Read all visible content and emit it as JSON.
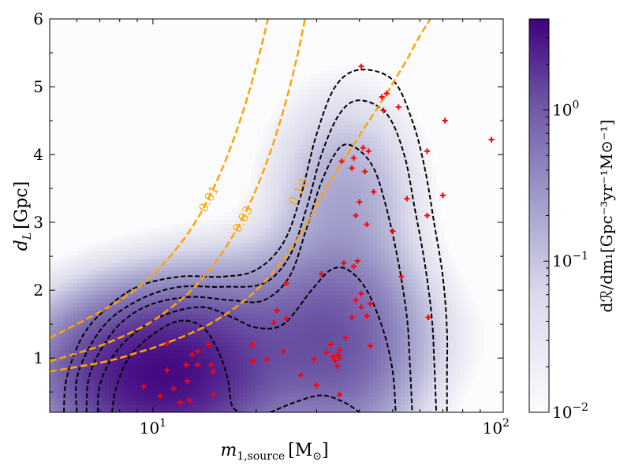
{
  "chart_data": {
    "type": "heatmap",
    "xscale": "log",
    "xlim": [
      5,
      105
    ],
    "ylim": [
      0.2,
      6.0
    ],
    "xlabel_main": "m",
    "xlabel_sub": "1,source",
    "xlabel_unit": "[M",
    "xlabel_unit_sub": "⊙",
    "xlabel_close": "]",
    "ylabel_main": "d",
    "ylabel_sub": "L",
    "ylabel_unit": "[Gpc]",
    "x_ticks": [
      {
        "value": 10,
        "base": "10",
        "exp": "1"
      },
      {
        "value": 100,
        "base": "10",
        "exp": "2"
      }
    ],
    "y_ticks": [
      {
        "value": 1,
        "label": "1"
      },
      {
        "value": 2,
        "label": "2"
      },
      {
        "value": 3,
        "label": "3"
      },
      {
        "value": 4,
        "label": "4"
      },
      {
        "value": 5,
        "label": "5"
      },
      {
        "value": 6,
        "label": "6"
      }
    ],
    "colorbar": {
      "label": "dℛ/dm₁[Gpc⁻³yr⁻¹M⊙⁻¹]",
      "scale": "log",
      "range": [
        0.01,
        4.0
      ],
      "ticks": [
        {
          "value": 0.01,
          "base": "10",
          "exp": "−2"
        },
        {
          "value": 0.1,
          "base": "10",
          "exp": "−1"
        },
        {
          "value": 1,
          "base": "10",
          "exp": "0"
        }
      ],
      "colors": [
        "#fcfbfd",
        "#dadaeb",
        "#9e9ac8",
        "#6a51a3",
        "#3f007d"
      ]
    },
    "density_blobs": [
      {
        "x": 10.5,
        "y": 0.75,
        "sx": 0.16,
        "sy": 0.55,
        "amp": 3.2
      },
      {
        "x": 20.0,
        "y": 1.3,
        "sx": 0.22,
        "sy": 0.6,
        "amp": 0.5
      },
      {
        "x": 34.0,
        "y": 1.2,
        "sx": 0.12,
        "sy": 0.8,
        "amp": 0.6
      },
      {
        "x": 36.0,
        "y": 3.3,
        "sx": 0.11,
        "sy": 0.8,
        "amp": 0.14
      }
    ],
    "contour_levels": [
      [
        [
          5.5,
          0.2
        ],
        [
          5.6,
          0.7
        ],
        [
          6.2,
          1.3
        ],
        [
          7.2,
          1.7
        ],
        [
          9,
          2.05
        ],
        [
          12,
          2.2
        ],
        [
          16,
          2.2
        ],
        [
          20,
          2.3
        ],
        [
          24,
          2.7
        ],
        [
          27,
          3.4
        ],
        [
          30,
          4.3
        ],
        [
          34,
          5.0
        ],
        [
          40,
          5.25
        ],
        [
          50,
          5.1
        ],
        [
          57,
          4.5
        ],
        [
          62,
          3.8
        ],
        [
          66,
          3.0
        ],
        [
          70,
          2.2
        ],
        [
          72,
          1.4
        ],
        [
          72,
          0.8
        ],
        [
          72,
          0.2
        ]
      ],
      [
        [
          6.0,
          0.2
        ],
        [
          6.0,
          0.7
        ],
        [
          6.6,
          1.2
        ],
        [
          7.6,
          1.6
        ],
        [
          9.5,
          1.9
        ],
        [
          12,
          2.05
        ],
        [
          16,
          2.05
        ],
        [
          21,
          2.1
        ],
        [
          25,
          2.5
        ],
        [
          28,
          3.2
        ],
        [
          31,
          4.0
        ],
        [
          35,
          4.6
        ],
        [
          40,
          4.8
        ],
        [
          48,
          4.6
        ],
        [
          54,
          4.0
        ],
        [
          58,
          3.2
        ],
        [
          62,
          2.4
        ],
        [
          65,
          1.6
        ],
        [
          66,
          1.0
        ],
        [
          67,
          0.2
        ]
      ],
      [
        [
          6.4,
          0.2
        ],
        [
          6.5,
          0.7
        ],
        [
          7.1,
          1.15
        ],
        [
          8.2,
          1.55
        ],
        [
          10,
          1.8
        ],
        [
          13,
          1.9
        ],
        [
          17,
          1.85
        ],
        [
          21,
          1.85
        ],
        [
          25,
          2.2
        ],
        [
          28,
          2.9
        ],
        [
          31,
          3.6
        ],
        [
          35,
          4.1
        ],
        [
          39,
          4.1
        ],
        [
          44,
          3.8
        ],
        [
          48,
          3.2
        ],
        [
          52,
          2.4
        ],
        [
          55,
          1.6
        ],
        [
          56,
          1.0
        ],
        [
          57,
          0.2
        ]
      ],
      [
        [
          6.9,
          0.2
        ],
        [
          7.0,
          0.6
        ],
        [
          7.7,
          1.05
        ],
        [
          9,
          1.4
        ],
        [
          11,
          1.65
        ],
        [
          14,
          1.75
        ],
        [
          17,
          1.6
        ],
        [
          20,
          1.45
        ],
        [
          24,
          1.5
        ],
        [
          29,
          2.0
        ],
        [
          33,
          2.3
        ],
        [
          37,
          2.3
        ],
        [
          42,
          2.0
        ],
        [
          47,
          1.4
        ],
        [
          50,
          0.8
        ],
        [
          51,
          0.2
        ]
      ],
      [
        [
          7.6,
          0.2
        ],
        [
          7.8,
          0.55
        ],
        [
          8.5,
          1.0
        ],
        [
          10,
          1.35
        ],
        [
          12,
          1.55
        ],
        [
          14,
          1.45
        ],
        [
          15.5,
          1.1
        ],
        [
          16.5,
          0.7
        ],
        [
          17,
          0.3
        ],
        [
          18,
          0.2
        ]
      ],
      [
        [
          22,
          0.2
        ],
        [
          26,
          0.35
        ],
        [
          31,
          0.45
        ],
        [
          36,
          0.35
        ],
        [
          40,
          0.2
        ]
      ]
    ],
    "distance_curves": [
      {
        "label": "0.01",
        "xs": [
          5,
          6,
          7,
          8,
          9,
          10,
          11,
          12,
          13,
          14,
          15,
          16,
          17,
          18,
          19,
          20,
          21,
          22,
          23,
          24,
          25,
          26,
          27
        ],
        "ys": [
          1.3,
          1.5,
          1.68,
          1.85,
          2.03,
          2.23,
          2.45,
          2.68,
          2.93,
          3.2,
          3.5,
          3.82,
          4.16,
          4.52,
          4.9,
          5.3,
          5.72,
          6.16,
          6.6,
          7.1,
          7.6,
          8.1,
          8.7
        ],
        "label_pos": [
          14.5,
          3.35
        ]
      },
      {
        "label": "0.03",
        "xs": [
          5,
          6,
          7,
          8,
          9,
          10,
          11,
          12,
          13,
          14,
          15,
          16,
          17,
          18,
          19,
          20,
          21,
          22,
          23,
          24,
          25,
          26,
          27,
          28,
          29,
          30,
          31,
          32
        ],
        "ys": [
          0.95,
          1.07,
          1.18,
          1.3,
          1.42,
          1.55,
          1.7,
          1.85,
          2.01,
          2.19,
          2.37,
          2.57,
          2.78,
          3.0,
          3.24,
          3.49,
          3.76,
          4.04,
          4.34,
          4.65,
          4.98,
          5.33,
          5.7,
          6.1,
          6.5,
          6.95,
          7.4,
          7.9
        ],
        "label_pos": [
          18.2,
          3.05
        ]
      },
      {
        "label": "0.10",
        "xs": [
          5,
          6,
          7,
          8,
          9,
          10,
          12,
          14,
          16,
          18,
          20,
          22,
          24,
          26,
          28,
          30,
          32,
          34,
          36,
          38,
          40,
          42,
          44,
          46,
          48,
          50,
          55,
          60,
          70,
          80,
          90,
          100,
          105
        ],
        "ys": [
          0.8,
          0.87,
          0.93,
          1.0,
          1.08,
          1.15,
          1.3,
          1.45,
          1.62,
          1.8,
          2.0,
          2.22,
          2.45,
          2.7,
          2.97,
          3.25,
          3.5,
          3.72,
          3.92,
          4.1,
          4.28,
          4.45,
          4.6,
          4.75,
          4.9,
          5.05,
          5.4,
          5.75,
          6.3,
          6.8,
          7.3,
          7.8,
          8.0
        ],
        "label_pos": [
          26.5,
          3.45
        ]
      }
    ],
    "events": [
      [
        9.4,
        0.58
      ],
      [
        10.5,
        0.44
      ],
      [
        11.0,
        1.21
      ],
      [
        11.0,
        0.82
      ],
      [
        11.5,
        0.55
      ],
      [
        12.0,
        0.35
      ],
      [
        12.5,
        0.9
      ],
      [
        12.6,
        0.66
      ],
      [
        12.8,
        0.38
      ],
      [
        13.0,
        1.05
      ],
      [
        13.5,
        0.9
      ],
      [
        13.5,
        1.1
      ],
      [
        14.5,
        1.2
      ],
      [
        14.8,
        0.9
      ],
      [
        15.0,
        0.8
      ],
      [
        15.0,
        0.46
      ],
      [
        19.5,
        1.2
      ],
      [
        19.5,
        0.95
      ],
      [
        21.5,
        0.98
      ],
      [
        22.5,
        1.52
      ],
      [
        23.0,
        1.7
      ],
      [
        24.0,
        1.1
      ],
      [
        24.5,
        1.58
      ],
      [
        24.5,
        2.1
      ],
      [
        27.0,
        0.75
      ],
      [
        29.5,
        0.98
      ],
      [
        30.0,
        0.6
      ],
      [
        31.0,
        2.24
      ],
      [
        32.0,
        1.08
      ],
      [
        33.0,
        1.2
      ],
      [
        33.5,
        1.02
      ],
      [
        34.0,
        0.96
      ],
      [
        34.5,
        1.05
      ],
      [
        34.5,
        0.88
      ],
      [
        35.0,
        0.46
      ],
      [
        35.0,
        1.0
      ],
      [
        35.0,
        1.12
      ],
      [
        36.5,
        1.3
      ],
      [
        38.0,
        1.6
      ],
      [
        38.5,
        2.35
      ],
      [
        39.0,
        1.85
      ],
      [
        39.5,
        2.43
      ],
      [
        40.5,
        1.75
      ],
      [
        40.5,
        1.95
      ],
      [
        42.0,
        1.62
      ],
      [
        43.0,
        1.8
      ],
      [
        43.0,
        1.18
      ],
      [
        36.0,
        2.4
      ],
      [
        38.0,
        3.8
      ],
      [
        39.0,
        3.1
      ],
      [
        40.0,
        3.3
      ],
      [
        41.0,
        4.1
      ],
      [
        41.5,
        3.75
      ],
      [
        42.0,
        2.97
      ],
      [
        42.5,
        4.05
      ],
      [
        44.0,
        3.45
      ],
      [
        38.5,
        3.95
      ],
      [
        35.5,
        3.9
      ],
      [
        40.5,
        5.3
      ],
      [
        46.5,
        4.85
      ],
      [
        47.0,
        4.65
      ],
      [
        48.0,
        4.9
      ],
      [
        50.0,
        2.87
      ],
      [
        52.0,
        4.7
      ],
      [
        53.0,
        2.2
      ],
      [
        55.0,
        3.35
      ],
      [
        63.0,
        4.05
      ],
      [
        63.0,
        3.1
      ],
      [
        63.5,
        1.6
      ],
      [
        70.0,
        3.4
      ],
      [
        71.0,
        4.5
      ],
      [
        97.0,
        4.22
      ]
    ]
  }
}
